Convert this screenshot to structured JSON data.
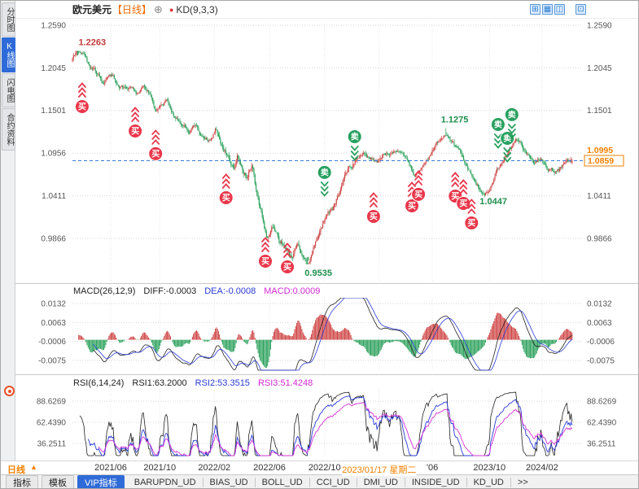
{
  "header": {
    "symbol": "欧元美元",
    "period_label": "【日线】",
    "plus_icon": "⊕",
    "indicator_dot": "●",
    "indicator": "KD(9,3,3)",
    "toolbar_icons": [
      {
        "name": "multi-grid-icon",
        "glyph": "⊞"
      },
      {
        "name": "single-window-icon",
        "glyph": "▦"
      },
      {
        "name": "dual-window-icon",
        "glyph": "◫"
      },
      {
        "name": "new-window-icon",
        "glyph": "⊡"
      }
    ]
  },
  "sidebar": {
    "tabs": [
      {
        "name": "tab-time-share-chart",
        "label": "分时图",
        "active": false
      },
      {
        "name": "tab-kline-chart",
        "label": "K线图",
        "active": true
      },
      {
        "name": "tab-flash-chart",
        "label": "闪电图",
        "active": false
      },
      {
        "name": "tab-contract-info",
        "label": "合约资料",
        "active": false
      }
    ]
  },
  "price_panel": {
    "y_ticks": [
      "1.2590",
      "1.2045",
      "1.1501",
      "1.0956",
      "1.0411",
      "0.9866"
    ],
    "current_price_tag": "1.0995",
    "last_close_tag": "1.0859",
    "annotations": [
      {
        "text": "1.2263",
        "f": 0.012,
        "price": 1.2263,
        "pos": "above",
        "color": "#c23a3a"
      },
      {
        "text": "1.1275",
        "f": 0.722,
        "price": 1.1275,
        "pos": "above",
        "color": "#1f8f4d"
      },
      {
        "text": "1.0447",
        "f": 0.798,
        "price": 1.0447,
        "pos": "below",
        "color": "#1f8f4d"
      },
      {
        "text": "0.9535",
        "f": 0.455,
        "price": 0.9535,
        "pos": "below",
        "color": "#1f8f4d"
      }
    ]
  },
  "macd_panel": {
    "title": "MACD(26,12,9)",
    "diff": "DIFF:-0.0003",
    "dea": "DEA:-0.0008",
    "macd": "MACD:0.0009",
    "y_ticks": [
      "0.0132",
      "0.0063",
      "-0.0006",
      "-0.0075"
    ]
  },
  "rsi_panel": {
    "title": "RSI(6,14,24)",
    "rsi1": "RSI1:63.2000",
    "rsi2": "RSI2:53.3515",
    "rsi3": "RSI3:51.4248",
    "y_ticks": [
      "88.6269",
      "62.4390",
      "36.2511"
    ]
  },
  "x_axis": {
    "period_button": "日线",
    "period_arrow": "▲",
    "ticks": [
      {
        "text": "2021/06",
        "f": 0.075
      },
      {
        "text": "2021/10",
        "f": 0.171
      },
      {
        "text": "2022/02",
        "f": 0.278
      },
      {
        "text": "2022/06",
        "f": 0.386
      },
      {
        "text": "2022/10",
        "f": 0.494
      },
      {
        "text": "2023/01/17 星期二",
        "f": 0.601,
        "highlight": true
      },
      {
        "text": "'06",
        "f": 0.705
      },
      {
        "text": "2023/10",
        "f": 0.817
      },
      {
        "text": "2024/02",
        "f": 0.92
      }
    ]
  },
  "bottom_tabs": [
    {
      "name": "tab-indicator",
      "label": "指标",
      "style": "btn"
    },
    {
      "name": "tab-template",
      "label": "模板",
      "style": "btn"
    },
    {
      "name": "tab-vip-indicator",
      "label": "VIP指标",
      "style": "active"
    },
    {
      "name": "tab-barupdn-ud",
      "label": "BARUPDN_UD",
      "style": "plain"
    },
    {
      "name": "tab-bias-ud",
      "label": "BIAS_UD",
      "style": "plain"
    },
    {
      "name": "tab-boll-ud",
      "label": "BOLL_UD",
      "style": "plain"
    },
    {
      "name": "tab-cci-ud",
      "label": "CCI_UD",
      "style": "plain"
    },
    {
      "name": "tab-dmi-ud",
      "label": "DMI_UD",
      "style": "plain"
    },
    {
      "name": "tab-inside-ud",
      "label": "INSIDE_UD",
      "style": "plain"
    },
    {
      "name": "tab-kd-ud",
      "label": "KD_UD",
      "style": "plain"
    },
    {
      "name": "tab-more",
      "label": ">>",
      "style": "more"
    }
  ],
  "chart_data": {
    "type": "candlestick",
    "symbol": "EUR/USD 欧元美元",
    "period": "daily",
    "price_axis": {
      "ticks": [
        1.259,
        1.2045,
        1.1501,
        1.0956,
        1.0411,
        0.9866
      ],
      "high": 1.2263,
      "low": 0.9535,
      "last_close": 1.0859,
      "current": 1.0995
    },
    "x_tick_labels": [
      "2021/06",
      "2021/10",
      "2022/02",
      "2022/06",
      "2022/10",
      "2023/01/17 星期二",
      "'06",
      "2023/10",
      "2024/02"
    ],
    "price_path_anchors": [
      [
        0.0,
        1.214
      ],
      [
        0.01,
        1.2263
      ],
      [
        0.022,
        1.218
      ],
      [
        0.035,
        1.204
      ],
      [
        0.05,
        1.196
      ],
      [
        0.062,
        1.188
      ],
      [
        0.075,
        1.193
      ],
      [
        0.09,
        1.183
      ],
      [
        0.1,
        1.176
      ],
      [
        0.115,
        1.182
      ],
      [
        0.128,
        1.172
      ],
      [
        0.14,
        1.179
      ],
      [
        0.152,
        1.171
      ],
      [
        0.163,
        1.146
      ],
      [
        0.172,
        1.152
      ],
      [
        0.185,
        1.16
      ],
      [
        0.2,
        1.137
      ],
      [
        0.213,
        1.131
      ],
      [
        0.228,
        1.124
      ],
      [
        0.243,
        1.13
      ],
      [
        0.256,
        1.114
      ],
      [
        0.27,
        1.108
      ],
      [
        0.28,
        1.124
      ],
      [
        0.292,
        1.106
      ],
      [
        0.305,
        1.094
      ],
      [
        0.316,
        1.08
      ],
      [
        0.324,
        1.092
      ],
      [
        0.333,
        1.074
      ],
      [
        0.342,
        1.064
      ],
      [
        0.352,
        1.08
      ],
      [
        0.36,
        1.048
      ],
      [
        0.372,
        1.012
      ],
      [
        0.382,
        0.99
      ],
      [
        0.393,
        1.0
      ],
      [
        0.404,
        0.984
      ],
      [
        0.417,
        0.978
      ],
      [
        0.43,
        0.969
      ],
      [
        0.441,
        0.984
      ],
      [
        0.453,
        0.968
      ],
      [
        0.462,
        0.9555
      ],
      [
        0.472,
        0.972
      ],
      [
        0.483,
        0.99
      ],
      [
        0.495,
        1.004
      ],
      [
        0.508,
        1.022
      ],
      [
        0.522,
        1.04
      ],
      [
        0.538,
        1.062
      ],
      [
        0.556,
        1.083
      ],
      [
        0.572,
        1.096
      ],
      [
        0.585,
        1.09
      ],
      [
        0.597,
        1.082
      ],
      [
        0.61,
        1.092
      ],
      [
        0.624,
        1.099
      ],
      [
        0.636,
        1.103
      ],
      [
        0.648,
        1.092
      ],
      [
        0.66,
        1.078
      ],
      [
        0.672,
        1.064
      ],
      [
        0.683,
        1.072
      ],
      [
        0.695,
        1.088
      ],
      [
        0.707,
        1.098
      ],
      [
        0.72,
        1.11
      ],
      [
        0.732,
        1.121
      ],
      [
        0.742,
        1.115
      ],
      [
        0.755,
        1.101
      ],
      [
        0.768,
        1.085
      ],
      [
        0.78,
        1.068
      ],
      [
        0.793,
        1.056
      ],
      [
        0.806,
        1.047
      ],
      [
        0.818,
        1.055
      ],
      [
        0.83,
        1.072
      ],
      [
        0.843,
        1.088
      ],
      [
        0.856,
        1.103
      ],
      [
        0.868,
        1.112
      ],
      [
        0.88,
        1.103
      ],
      [
        0.892,
        1.092
      ],
      [
        0.904,
        1.083
      ],
      [
        0.917,
        1.089
      ],
      [
        0.93,
        1.077
      ],
      [
        0.943,
        1.071
      ],
      [
        0.956,
        1.078
      ],
      [
        0.968,
        1.083
      ],
      [
        0.979,
        1.0859
      ]
    ],
    "signal_labels": {
      "buy": "买",
      "sell": "卖"
    },
    "signals": [
      {
        "type": "buy",
        "f": 0.019,
        "price": 1.155
      },
      {
        "type": "buy",
        "f": 0.123,
        "price": 1.1238
      },
      {
        "type": "buy",
        "f": 0.163,
        "price": 1.0948
      },
      {
        "type": "buy",
        "f": 0.301,
        "price": 1.0386
      },
      {
        "type": "buy",
        "f": 0.378,
        "price": 0.9575
      },
      {
        "type": "buy",
        "f": 0.421,
        "price": 0.9502
      },
      {
        "type": "buy",
        "f": 0.59,
        "price": 1.0147
      },
      {
        "type": "buy",
        "f": 0.665,
        "price": 1.0282
      },
      {
        "type": "buy",
        "f": 0.678,
        "price": 1.0428
      },
      {
        "type": "buy",
        "f": 0.75,
        "price": 1.0407
      },
      {
        "type": "buy",
        "f": 0.766,
        "price": 1.0313
      },
      {
        "type": "buy",
        "f": 0.782,
        "price": 1.0064
      },
      {
        "type": "sell",
        "f": 0.494,
        "price": 1.0709
      },
      {
        "type": "sell",
        "f": 0.553,
        "price": 1.1166
      },
      {
        "type": "sell",
        "f": 0.834,
        "price": 1.1322
      },
      {
        "type": "sell",
        "f": 0.852,
        "price": 1.1145
      },
      {
        "type": "sell",
        "f": 0.861,
        "price": 1.1447
      }
    ],
    "indicators": {
      "macd": {
        "params": [
          26,
          12,
          9
        ],
        "diff": -0.0003,
        "dea": -0.0008,
        "macd": 0.0009
      },
      "rsi": {
        "params": [
          6,
          14,
          24
        ],
        "rsi1": 63.2,
        "rsi2": 53.3515,
        "rsi3": 51.4248
      },
      "kd": {
        "params": [
          9,
          3,
          3
        ]
      }
    },
    "colors": {
      "up": "#cf4444",
      "down": "#2aa05a",
      "buy": "#e8374a",
      "sell": "#27a05f",
      "accent_orange": "#f08000",
      "close_line": "#3a7bd5",
      "macd_diff": "#222222",
      "macd_dea": "#2a3bd6",
      "rsi1": "#222222",
      "rsi2": "#2a3bd6",
      "rsi3": "#d631d6"
    }
  }
}
